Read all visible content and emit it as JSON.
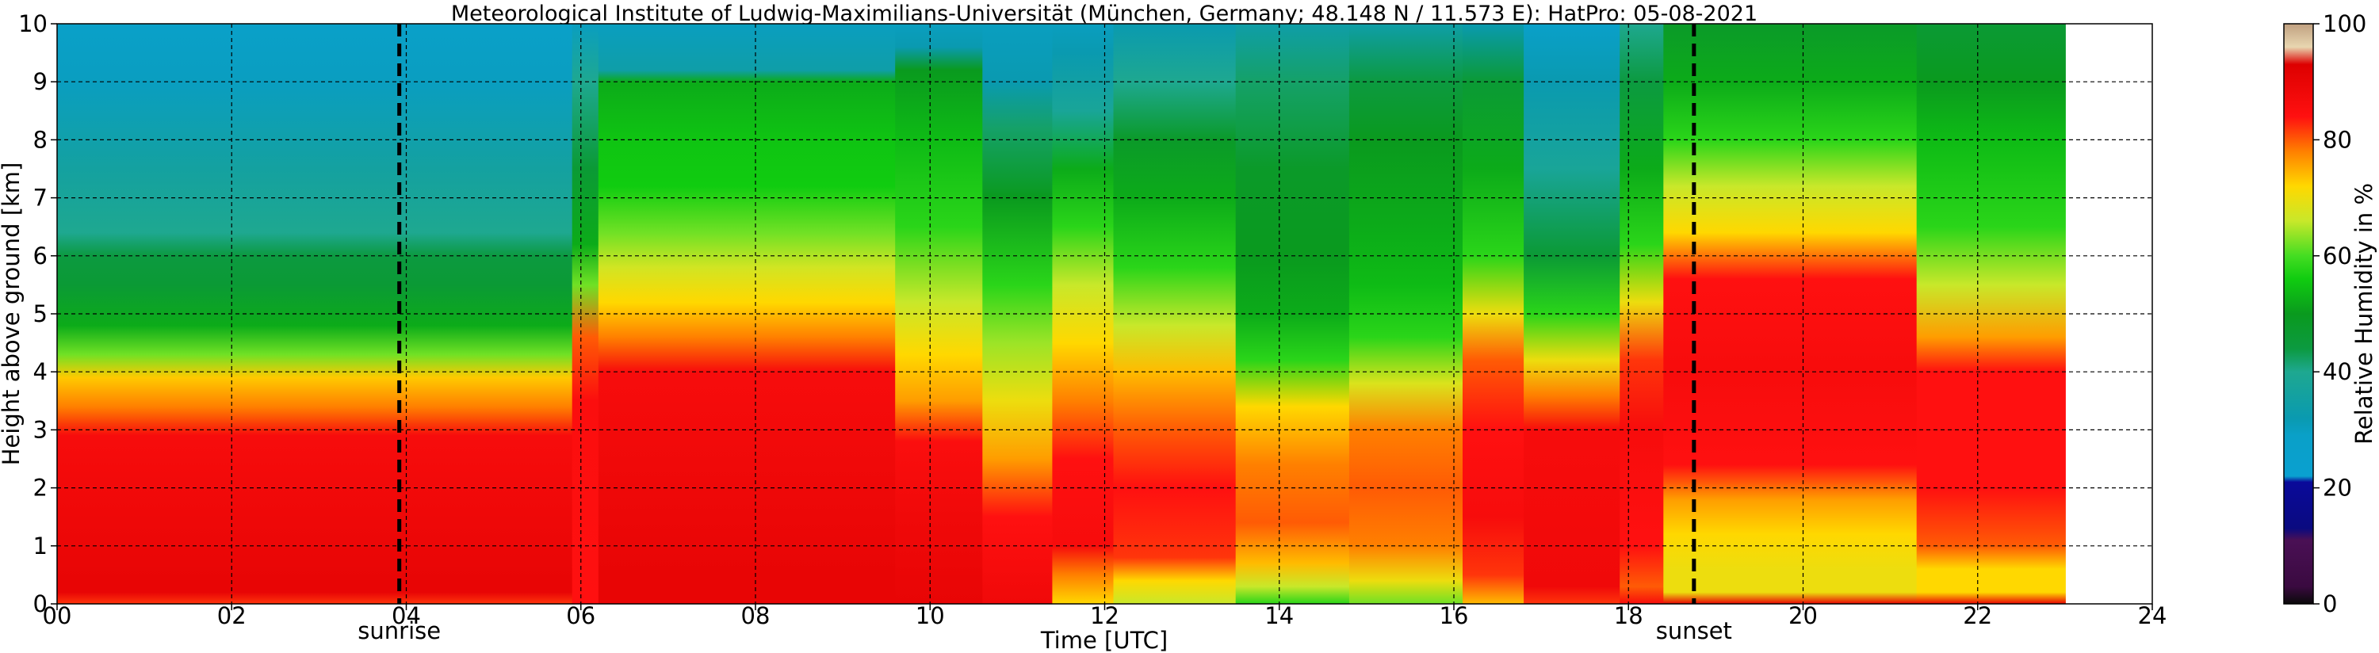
{
  "chart_data": {
    "type": "heatmap",
    "title": "Meteorological Institute of Ludwig-Maximilians-Universität (München, Germany; 48.148 N / 11.573 E):    HatPro: 05-08-2021",
    "xlabel": "Time [UTC]",
    "ylabel": "Height above ground [km]",
    "xlim": [
      0,
      24
    ],
    "ylim": [
      0,
      10
    ],
    "data_xlim": [
      0,
      23
    ],
    "x_ticks": [
      {
        "value": 0,
        "label": "00"
      },
      {
        "value": 2,
        "label": "02"
      },
      {
        "value": 4,
        "label": "04"
      },
      {
        "value": 6,
        "label": "06"
      },
      {
        "value": 8,
        "label": "08"
      },
      {
        "value": 10,
        "label": "10"
      },
      {
        "value": 12,
        "label": "12"
      },
      {
        "value": 14,
        "label": "14"
      },
      {
        "value": 16,
        "label": "16"
      },
      {
        "value": 18,
        "label": "18"
      },
      {
        "value": 20,
        "label": "20"
      },
      {
        "value": 22,
        "label": "22"
      },
      {
        "value": 24,
        "label": "24"
      }
    ],
    "y_ticks": [
      {
        "value": 0,
        "label": "0"
      },
      {
        "value": 1,
        "label": "1"
      },
      {
        "value": 2,
        "label": "2"
      },
      {
        "value": 3,
        "label": "3"
      },
      {
        "value": 4,
        "label": "4"
      },
      {
        "value": 5,
        "label": "5"
      },
      {
        "value": 6,
        "label": "6"
      },
      {
        "value": 7,
        "label": "7"
      },
      {
        "value": 8,
        "label": "8"
      },
      {
        "value": 9,
        "label": "9"
      },
      {
        "value": 10,
        "label": "10"
      }
    ],
    "grid": true,
    "annotations": [
      {
        "label": "sunrise",
        "x": 3.92
      },
      {
        "label": "sunset",
        "x": 18.75
      }
    ],
    "colorbar": {
      "label": "Relative Humidity in %",
      "range": [
        0,
        100
      ],
      "ticks": [
        {
          "value": 0,
          "label": "0"
        },
        {
          "value": 20,
          "label": "20"
        },
        {
          "value": 40,
          "label": "40"
        },
        {
          "value": 60,
          "label": "60"
        },
        {
          "value": 80,
          "label": "80"
        },
        {
          "value": 100,
          "label": "100"
        }
      ],
      "stops": [
        {
          "value": 0,
          "color": "#0a0a0a"
        },
        {
          "value": 3,
          "color": "#3a0a40"
        },
        {
          "value": 11,
          "color": "#4a1055"
        },
        {
          "value": 13,
          "color": "#0a0a80"
        },
        {
          "value": 21,
          "color": "#0a0a9a"
        },
        {
          "value": 22,
          "color": "#0aa0d0"
        },
        {
          "value": 29,
          "color": "#0aa0c8"
        },
        {
          "value": 32,
          "color": "#0a9ab0"
        },
        {
          "value": 40,
          "color": "#1ea890"
        },
        {
          "value": 44,
          "color": "#0c9a40"
        },
        {
          "value": 50,
          "color": "#0a9a1e"
        },
        {
          "value": 56,
          "color": "#10cc10"
        },
        {
          "value": 60,
          "color": "#44dd22"
        },
        {
          "value": 66,
          "color": "#c8e82a"
        },
        {
          "value": 72,
          "color": "#ffd800"
        },
        {
          "value": 78,
          "color": "#ff8000"
        },
        {
          "value": 84,
          "color": "#ff1010"
        },
        {
          "value": 93,
          "color": "#dd0000"
        },
        {
          "value": 96,
          "color": "#e8d6b0"
        },
        {
          "value": 100,
          "color": "#c0a080"
        }
      ]
    },
    "segments": [
      {
        "t0": 0.0,
        "t1": 5.9,
        "profile": [
          [
            0,
            82
          ],
          [
            0.2,
            90
          ],
          [
            0.4,
            90
          ],
          [
            2.9,
            86
          ],
          [
            3.4,
            78
          ],
          [
            3.9,
            73
          ],
          [
            4.3,
            62
          ],
          [
            4.8,
            52
          ],
          [
            5.5,
            46
          ],
          [
            6.0,
            44
          ],
          [
            6.4,
            40
          ],
          [
            7.5,
            36
          ],
          [
            9.0,
            30
          ],
          [
            10,
            28
          ]
        ]
      },
      {
        "t0": 5.9,
        "t1": 6.2,
        "profile": [
          [
            0,
            84
          ],
          [
            3.5,
            85
          ],
          [
            4.6,
            80
          ],
          [
            5.5,
            62
          ],
          [
            6.2,
            52
          ],
          [
            7.5,
            46
          ],
          [
            9.0,
            40
          ],
          [
            10,
            30
          ]
        ]
      },
      {
        "t0": 6.2,
        "t1": 9.6,
        "profile": [
          [
            0,
            90
          ],
          [
            0.5,
            90
          ],
          [
            1.5,
            89
          ],
          [
            2.4,
            88
          ],
          [
            4.0,
            86
          ],
          [
            4.6,
            78
          ],
          [
            5.2,
            72
          ],
          [
            5.8,
            67
          ],
          [
            6.4,
            62
          ],
          [
            7.2,
            56
          ],
          [
            8.0,
            55
          ],
          [
            9.0,
            52
          ],
          [
            9.2,
            34
          ],
          [
            10,
            30
          ]
        ]
      },
      {
        "t0": 9.6,
        "t1": 10.6,
        "profile": [
          [
            0,
            90
          ],
          [
            1.5,
            88
          ],
          [
            2.8,
            85
          ],
          [
            3.5,
            76
          ],
          [
            4.3,
            72
          ],
          [
            5.2,
            66
          ],
          [
            6.5,
            58
          ],
          [
            8.0,
            54
          ],
          [
            9.2,
            50
          ],
          [
            9.6,
            32
          ],
          [
            10,
            30
          ]
        ]
      },
      {
        "t0": 10.6,
        "t1": 11.4,
        "profile": [
          [
            0,
            88
          ],
          [
            1.5,
            84
          ],
          [
            2.5,
            76
          ],
          [
            3.5,
            70
          ],
          [
            4.5,
            64
          ],
          [
            5.5,
            58
          ],
          [
            7.0,
            50
          ],
          [
            8.2,
            42
          ],
          [
            9.0,
            32
          ],
          [
            10,
            30
          ]
        ]
      },
      {
        "t0": 11.4,
        "t1": 12.1,
        "profile": [
          [
            0,
            72
          ],
          [
            0.5,
            78
          ],
          [
            1.0,
            86
          ],
          [
            2.5,
            84
          ],
          [
            3.5,
            78
          ],
          [
            4.5,
            72
          ],
          [
            5.5,
            66
          ],
          [
            6.5,
            58
          ],
          [
            7.5,
            52
          ],
          [
            8.5,
            38
          ],
          [
            9.5,
            32
          ],
          [
            10,
            30
          ]
        ]
      },
      {
        "t0": 12.1,
        "t1": 13.5,
        "profile": [
          [
            0,
            66
          ],
          [
            0.4,
            72
          ],
          [
            0.8,
            82
          ],
          [
            2.0,
            84
          ],
          [
            3.0,
            80
          ],
          [
            4.0,
            74
          ],
          [
            4.8,
            66
          ],
          [
            5.8,
            58
          ],
          [
            7.0,
            52
          ],
          [
            8.0,
            48
          ],
          [
            9.0,
            40
          ],
          [
            10,
            32
          ]
        ]
      },
      {
        "t0": 13.5,
        "t1": 14.8,
        "profile": [
          [
            0,
            58
          ],
          [
            0.3,
            66
          ],
          [
            0.7,
            74
          ],
          [
            1.4,
            80
          ],
          [
            2.4,
            78
          ],
          [
            3.4,
            72
          ],
          [
            4.2,
            58
          ],
          [
            5.0,
            52
          ],
          [
            6.0,
            50
          ],
          [
            7.5,
            48
          ],
          [
            9.0,
            42
          ],
          [
            10,
            34
          ]
        ]
      },
      {
        "t0": 14.8,
        "t1": 16.1,
        "profile": [
          [
            0,
            62
          ],
          [
            0.4,
            70
          ],
          [
            1.0,
            78
          ],
          [
            2.0,
            80
          ],
          [
            3.0,
            78
          ],
          [
            3.8,
            68
          ],
          [
            4.6,
            58
          ],
          [
            5.5,
            54
          ],
          [
            6.5,
            52
          ],
          [
            8.0,
            50
          ],
          [
            9.0,
            44
          ],
          [
            10,
            34
          ]
        ]
      },
      {
        "t0": 16.1,
        "t1": 16.8,
        "profile": [
          [
            0,
            74
          ],
          [
            0.5,
            82
          ],
          [
            1.5,
            86
          ],
          [
            3.0,
            84
          ],
          [
            4.2,
            80
          ],
          [
            5.0,
            70
          ],
          [
            6.0,
            58
          ],
          [
            7.5,
            52
          ],
          [
            9.0,
            46
          ],
          [
            10,
            32
          ]
        ]
      },
      {
        "t0": 16.8,
        "t1": 17.9,
        "profile": [
          [
            0,
            82
          ],
          [
            0.3,
            88
          ],
          [
            3.0,
            86
          ],
          [
            3.6,
            78
          ],
          [
            4.2,
            70
          ],
          [
            5.0,
            58
          ],
          [
            6.0,
            46
          ],
          [
            7.5,
            38
          ],
          [
            9.0,
            32
          ],
          [
            10,
            28
          ]
        ]
      },
      {
        "t0": 17.9,
        "t1": 18.4,
        "profile": [
          [
            0,
            86
          ],
          [
            0.3,
            80
          ],
          [
            1.0,
            84
          ],
          [
            3.0,
            86
          ],
          [
            4.2,
            82
          ],
          [
            5.2,
            70
          ],
          [
            6.2,
            58
          ],
          [
            7.5,
            52
          ],
          [
            9.0,
            44
          ],
          [
            10,
            40
          ]
        ]
      },
      {
        "t0": 18.4,
        "t1": 21.3,
        "profile": [
          [
            0,
            90
          ],
          [
            0.2,
            70
          ],
          [
            0.6,
            70
          ],
          [
            1.2,
            72
          ],
          [
            1.8,
            76
          ],
          [
            2.4,
            84
          ],
          [
            4.0,
            86
          ],
          [
            5.6,
            84
          ],
          [
            6.4,
            72
          ],
          [
            7.2,
            66
          ],
          [
            8.0,
            58
          ],
          [
            9.0,
            52
          ],
          [
            10,
            48
          ]
        ]
      },
      {
        "t0": 21.3,
        "t1": 23.0,
        "profile": [
          [
            0,
            90
          ],
          [
            0.2,
            72
          ],
          [
            0.6,
            72
          ],
          [
            1.0,
            80
          ],
          [
            2.0,
            84
          ],
          [
            4.0,
            84
          ],
          [
            4.6,
            76
          ],
          [
            5.5,
            66
          ],
          [
            6.5,
            58
          ],
          [
            8.0,
            54
          ],
          [
            9.0,
            50
          ],
          [
            10,
            46
          ]
        ]
      }
    ]
  }
}
